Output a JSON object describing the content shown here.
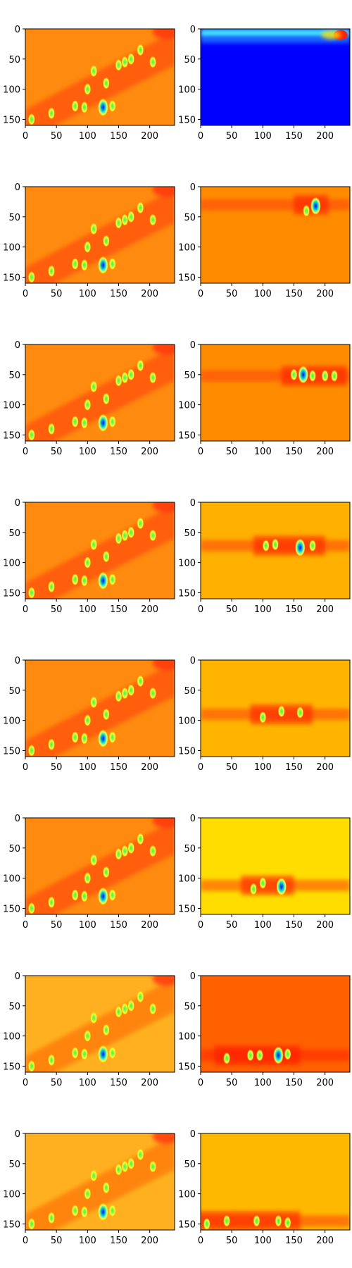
{
  "chart_data": {
    "type": "heatmap",
    "layout": {
      "rows": 8,
      "columns": 2
    },
    "colormap": [
      "#00007f",
      "#0000ff",
      "#00ffff",
      "#7fff7f",
      "#ffff00",
      "#ff7f00",
      "#ff0000",
      "#7f0000"
    ],
    "x_range": [
      0,
      240
    ],
    "y_range": [
      0,
      160
    ],
    "x_ticks": [
      0,
      50,
      100,
      150,
      200
    ],
    "y_ticks": [
      0,
      50,
      100,
      150
    ],
    "y_inverted": true,
    "colors": {
      "left_base": "#ff8a10",
      "left_band": "#ff5a10",
      "left_band_late": "#ffb020",
      "right_bases": [
        "#0000ff",
        "#ff8c00",
        "#ff8c00",
        "#ffb000",
        "#ffb400",
        "#ffdd00",
        "#ff6000",
        "#ffb800"
      ]
    },
    "left_blobs": [
      [
        10,
        150,
        1
      ],
      [
        42,
        140,
        1
      ],
      [
        80,
        128,
        1
      ],
      [
        95,
        130,
        1
      ],
      [
        100,
        100,
        1
      ],
      [
        110,
        70,
        1
      ],
      [
        125,
        130,
        2
      ],
      [
        130,
        90,
        1
      ],
      [
        140,
        128,
        1
      ],
      [
        150,
        60,
        1
      ],
      [
        160,
        55,
        1
      ],
      [
        170,
        50,
        1
      ],
      [
        185,
        35,
        1
      ],
      [
        205,
        55,
        1
      ]
    ],
    "right_rows": [
      {
        "band_y": 8,
        "blobs": [
          [
            225,
            12,
            1
          ]
        ]
      },
      {
        "band_y": 30,
        "blobs": [
          [
            185,
            32,
            2
          ],
          [
            170,
            40,
            1
          ]
        ]
      },
      {
        "band_y": 52,
        "blobs": [
          [
            150,
            50,
            1
          ],
          [
            165,
            50,
            2
          ],
          [
            180,
            52,
            1
          ],
          [
            200,
            52,
            1
          ],
          [
            215,
            52,
            1
          ]
        ]
      },
      {
        "band_y": 72,
        "blobs": [
          [
            105,
            72,
            1
          ],
          [
            120,
            70,
            1
          ],
          [
            160,
            75,
            2
          ],
          [
            180,
            72,
            1
          ]
        ]
      },
      {
        "band_y": 90,
        "blobs": [
          [
            100,
            95,
            1
          ],
          [
            130,
            85,
            1
          ],
          [
            160,
            87,
            1
          ]
        ]
      },
      {
        "band_y": 112,
        "blobs": [
          [
            85,
            118,
            1
          ],
          [
            100,
            108,
            1
          ],
          [
            130,
            114,
            2
          ]
        ]
      },
      {
        "band_y": 132,
        "blobs": [
          [
            42,
            137,
            1
          ],
          [
            80,
            132,
            1
          ],
          [
            95,
            132,
            1
          ],
          [
            125,
            132,
            2
          ],
          [
            140,
            130,
            1
          ]
        ]
      },
      {
        "band_y": 145,
        "blobs": [
          [
            10,
            150,
            1
          ],
          [
            42,
            145,
            1
          ],
          [
            90,
            145,
            1
          ],
          [
            125,
            145,
            1
          ],
          [
            140,
            148,
            1
          ]
        ]
      }
    ]
  }
}
